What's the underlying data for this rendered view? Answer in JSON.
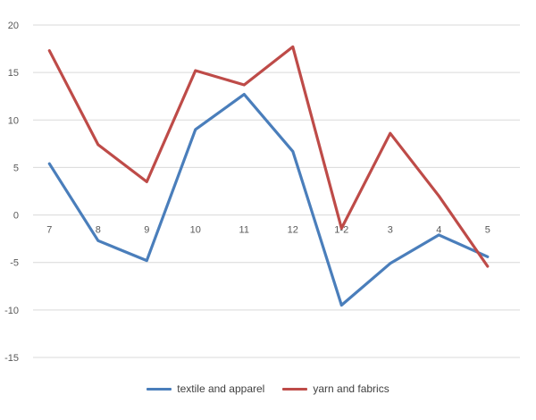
{
  "chart_data": {
    "type": "line",
    "title": "",
    "xlabel": "",
    "ylabel": "",
    "categories": [
      "7",
      "8",
      "9",
      "10",
      "11",
      "12",
      "1-2",
      "3",
      "4",
      "5"
    ],
    "ylim": [
      -15,
      20
    ],
    "yticks": [
      -15,
      -10,
      -5,
      0,
      5,
      10,
      15,
      20
    ],
    "grid": true,
    "legend_position": "bottom",
    "series": [
      {
        "name": "textile and apparel",
        "color": "#4a7ebb",
        "values": [
          5.4,
          -2.7,
          -4.8,
          9.0,
          12.7,
          6.7,
          -9.5,
          -5.1,
          -2.1,
          -4.4
        ]
      },
      {
        "name": "yarn and fabrics",
        "color": "#be4b48",
        "values": [
          17.3,
          7.4,
          3.5,
          15.2,
          13.7,
          17.7,
          -1.4,
          8.6,
          2.0,
          -5.4
        ]
      }
    ]
  }
}
